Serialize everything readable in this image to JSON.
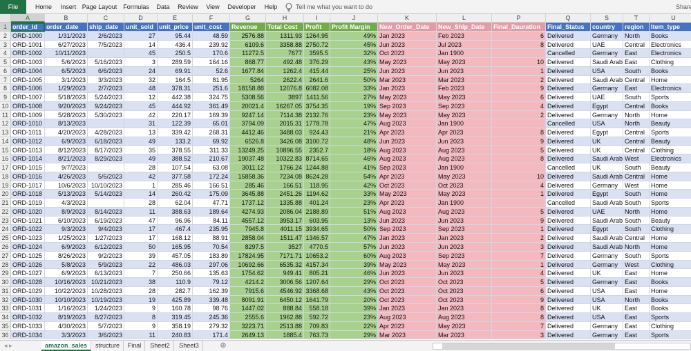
{
  "ribbon": {
    "tabs": [
      "File",
      "Home",
      "Insert",
      "Page Layout",
      "Formulas",
      "Data",
      "Review",
      "View",
      "Developer",
      "Help"
    ],
    "tell_me": "Tell me what you want to do",
    "share": "Share"
  },
  "column_letters": [
    "A",
    "B",
    "C",
    "D",
    "E",
    "F",
    "G",
    "H",
    "I",
    "J",
    "K",
    "L",
    "P",
    "Q",
    "S",
    "T",
    "U"
  ],
  "row_numbers": [
    1,
    2,
    3,
    4,
    5,
    6,
    7,
    8,
    9,
    10,
    11,
    12,
    13,
    14,
    15,
    16,
    17,
    18,
    19,
    20,
    21,
    22,
    23,
    24,
    25,
    26,
    27,
    28,
    29,
    30,
    31,
    32,
    33,
    34,
    35,
    36
  ],
  "table": {
    "headers": [
      "order_id",
      "order_date",
      "ship_date",
      "unit_sold",
      "unit_price",
      "unit_cost",
      "Revenue",
      "Total Cost",
      "Profit",
      "Profit Margin",
      "New_Order_Date",
      "New_Ship_Date",
      "Final_Dauration",
      "Final_Status",
      "country",
      "region",
      "Item_type"
    ],
    "rows": [
      [
        "ORD-1000",
        "1/31/2023",
        "2/6/2023",
        27,
        95.44,
        48.59,
        2576.88,
        1311.93,
        1264.95,
        "49%",
        "Jan 2023",
        "Feb 2023",
        6,
        "Delivered",
        "Germany",
        "North",
        "Books"
      ],
      [
        "ORD-1001",
        "6/27/2023",
        "7/5/2023",
        14,
        436.4,
        239.92,
        6109.6,
        3358.88,
        2750.72,
        "45%",
        "Jun 2023",
        "Jul 2023",
        8,
        "Delivered",
        "UAE",
        "Central",
        "Electronics"
      ],
      [
        "ORD-1002",
        "10/11/2023",
        null,
        45,
        250.5,
        170.6,
        11272.5,
        7677,
        3595.5,
        "32%",
        "Oct 2023",
        "Jan 1900",
        null,
        "Cancelled",
        "Germany",
        "East",
        "Electronics"
      ],
      [
        "ORD-1003",
        "5/6/2023",
        "5/16/2023",
        3,
        289.59,
        164.16,
        868.77,
        492.48,
        376.29,
        "43%",
        "May 2023",
        "May 2023",
        10,
        "Delivered",
        "Saudi Arabia",
        "East",
        "Clothing"
      ],
      [
        "ORD-1004",
        "6/5/2023",
        "6/6/2023",
        24,
        69.91,
        52.6,
        1677.84,
        1262.4,
        415.44,
        "25%",
        "Jun 2023",
        "Jun 2023",
        1,
        "Delivered",
        "USA",
        "South",
        "Books"
      ],
      [
        "ORD-1005",
        "3/1/2023",
        "3/3/2023",
        32,
        164.5,
        81.95,
        5264,
        2622.4,
        2641.6,
        "50%",
        "Mar 2023",
        "Mar 2023",
        2,
        "Delivered",
        "Saudi Arabia",
        "Central",
        "Home"
      ],
      [
        "ORD-1006",
        "1/29/2023",
        "2/7/2023",
        48,
        378.31,
        251.6,
        18158.88,
        12076.8,
        6082.08,
        "33%",
        "Jan 2023",
        "Feb 2023",
        9,
        "Delivered",
        "Germany",
        "East",
        "Electronics"
      ],
      [
        "ORD-1007",
        "5/18/2023",
        "5/24/2023",
        12,
        442.38,
        324.75,
        5308.56,
        3897,
        1411.56,
        "27%",
        "May 2023",
        "May 2023",
        6,
        "Delivered",
        "UAE",
        "South",
        "Sports"
      ],
      [
        "ORD-1008",
        "9/20/2023",
        "9/24/2023",
        45,
        444.92,
        361.49,
        20021.4,
        16267.05,
        3754.35,
        "19%",
        "Sep 2023",
        "Sep 2023",
        4,
        "Delivered",
        "Egypt",
        "Central",
        "Books"
      ],
      [
        "ORD-1009",
        "5/28/2023",
        "5/30/2023",
        42,
        220.17,
        169.39,
        9247.14,
        7114.38,
        2132.76,
        "23%",
        "May 2023",
        "May 2023",
        2,
        "Delivered",
        "Germany",
        "North",
        "Home"
      ],
      [
        "ORD-1010",
        "8/13/2023",
        null,
        31,
        122.39,
        65.01,
        3794.09,
        2015.31,
        1778.78,
        "47%",
        "Aug 2023",
        "Jan 1900",
        null,
        "Cancelled",
        "USA",
        "North",
        "Beauty"
      ],
      [
        "ORD-1011",
        "4/20/2023",
        "4/28/2023",
        13,
        339.42,
        268.31,
        4412.46,
        3488.03,
        924.43,
        "21%",
        "Apr 2023",
        "Apr 2023",
        8,
        "Delivered",
        "Egypt",
        "Central",
        "Sports"
      ],
      [
        "ORD-1012",
        "6/9/2023",
        "6/18/2023",
        49,
        133.2,
        69.92,
        6526.8,
        3426.08,
        3100.72,
        "48%",
        "Jun 2023",
        "Jun 2023",
        9,
        "Delivered",
        "UK",
        "Central",
        "Beauty"
      ],
      [
        "ORD-1013",
        "8/12/2023",
        "8/17/2023",
        35,
        378.55,
        311.33,
        13249.25,
        10896.55,
        2352.7,
        "18%",
        "Aug 2023",
        "Aug 2023",
        5,
        "Delivered",
        "UK",
        "Central",
        "Clothing"
      ],
      [
        "ORD-1014",
        "8/21/2023",
        "8/29/2023",
        49,
        388.52,
        210.67,
        19037.48,
        10322.83,
        8714.65,
        "46%",
        "Aug 2023",
        "Aug 2023",
        8,
        "Delivered",
        "Saudi Arabia",
        "West",
        "Electronics"
      ],
      [
        "ORD-1015",
        "9/7/2023",
        null,
        28,
        107.54,
        63.08,
        3011.12,
        1766.24,
        1244.88,
        "41%",
        "Sep 2023",
        "Jan 1900",
        null,
        "Cancelled",
        "UK",
        "South",
        "Beauty"
      ],
      [
        "ORD-1016",
        "4/26/2023",
        "5/6/2023",
        42,
        377.58,
        172.24,
        15858.36,
        7234.08,
        8624.28,
        "54%",
        "Apr 2023",
        "May 2023",
        10,
        "Delivered",
        "Saudi Arabia",
        "Central",
        "Home"
      ],
      [
        "ORD-1017",
        "10/6/2023",
        "10/10/2023",
        1,
        285.46,
        166.51,
        285.46,
        166.51,
        118.95,
        "42%",
        "Oct 2023",
        "Oct 2023",
        4,
        "Delivered",
        "Germany",
        "West",
        "Home"
      ],
      [
        "ORD-1018",
        "5/13/2023",
        "5/14/2023",
        14,
        260.42,
        175.09,
        3645.88,
        2451.26,
        1194.62,
        "33%",
        "May 2023",
        "May 2023",
        1,
        "Delivered",
        "Egypt",
        "South",
        "Home"
      ],
      [
        "ORD-1019",
        "4/3/2023",
        null,
        28,
        62.04,
        47.71,
        1737.12,
        1335.88,
        401.24,
        "23%",
        "Apr 2023",
        "Jan 1900",
        null,
        "Cancelled",
        "Saudi Arabia",
        "South",
        "Sports"
      ],
      [
        "ORD-1020",
        "8/9/2023",
        "8/14/2023",
        11,
        388.63,
        189.64,
        4274.93,
        2086.04,
        2188.89,
        "51%",
        "Aug 2023",
        "Aug 2023",
        5,
        "Delivered",
        "UAE",
        "North",
        "Home"
      ],
      [
        "ORD-1021",
        "6/10/2023",
        "6/19/2023",
        47,
        96.96,
        84.11,
        4557.12,
        3953.17,
        603.95,
        "13%",
        "Jun 2023",
        "Jun 2023",
        9,
        "Delivered",
        "Saudi Arabia",
        "South",
        "Beauty"
      ],
      [
        "ORD-1022",
        "9/3/2023",
        "9/4/2023",
        17,
        467.4,
        235.95,
        7945.8,
        4011.15,
        3934.65,
        "50%",
        "Sep 2023",
        "Sep 2023",
        1,
        "Delivered",
        "Egypt",
        "South",
        "Clothing"
      ],
      [
        "ORD-1023",
        "1/25/2023",
        "1/27/2023",
        17,
        168.12,
        88.91,
        2858.04,
        1511.47,
        1346.57,
        "47%",
        "Jan 2023",
        "Jan 2023",
        2,
        "Delivered",
        "Saudi Arabia",
        "Central",
        "Home"
      ],
      [
        "ORD-1024",
        "6/9/2023",
        "6/12/2023",
        50,
        165.95,
        70.54,
        8297.5,
        3527,
        4770.5,
        "57%",
        "Jun 2023",
        "Jun 2023",
        3,
        "Delivered",
        "Saudi Arabia",
        "North",
        "Home"
      ],
      [
        "ORD-1025",
        "8/26/2023",
        "9/2/2023",
        39,
        457.05,
        183.89,
        17824.95,
        7171.71,
        10653.2,
        "60%",
        "Aug 2023",
        "Sep 2023",
        7,
        "Delivered",
        "Germany",
        "South",
        "Sports"
      ],
      [
        "ORD-1026",
        "5/8/2023",
        "5/9/2023",
        22,
        486.03,
        297.06,
        10692.66,
        6535.32,
        4157.34,
        "39%",
        "May 2023",
        "May 2023",
        1,
        "Delivered",
        "Germany",
        "West",
        "Clothing"
      ],
      [
        "ORD-1027",
        "6/9/2023",
        "6/13/2023",
        7,
        250.66,
        135.63,
        1754.62,
        949.41,
        805.21,
        "46%",
        "Jun 2023",
        "Jun 2023",
        4,
        "Delivered",
        "UK",
        "East",
        "Home"
      ],
      [
        "ORD-1028",
        "10/16/2023",
        "10/21/2023",
        38,
        110.9,
        79.12,
        4214.2,
        3006.56,
        1207.64,
        "29%",
        "Oct 2023",
        "Oct 2023",
        5,
        "Delivered",
        "Germany",
        "East",
        "Books"
      ],
      [
        "ORD-1029",
        "10/22/2023",
        "10/28/2023",
        28,
        282.7,
        162.39,
        7915.6,
        4546.92,
        3368.68,
        "43%",
        "Oct 2023",
        "Oct 2023",
        6,
        "Delivered",
        "USA",
        "East",
        "Home"
      ],
      [
        "ORD-1030",
        "10/10/2023",
        "10/19/2023",
        19,
        425.89,
        339.48,
        8091.91,
        6450.12,
        1641.79,
        "20%",
        "Oct 2023",
        "Oct 2023",
        9,
        "Delivered",
        "USA",
        "North",
        "Books"
      ],
      [
        "ORD-1031",
        "1/16/2023",
        "1/24/2023",
        9,
        160.78,
        98.76,
        1447.02,
        888.84,
        558.18,
        "39%",
        "Jan 2023",
        "Jan 2023",
        8,
        "Delivered",
        "UK",
        "East",
        "Books"
      ],
      [
        "ORD-1032",
        "8/19/2023",
        "8/27/2023",
        8,
        319.45,
        245.36,
        2555.6,
        1962.88,
        592.72,
        "23%",
        "Aug 2023",
        "Aug 2023",
        8,
        "Delivered",
        "USA",
        "East",
        "Sports"
      ],
      [
        "ORD-1033",
        "4/30/2023",
        "5/7/2023",
        9,
        358.19,
        279.32,
        3223.71,
        2513.88,
        709.83,
        "22%",
        "Apr 2023",
        "May 2023",
        7,
        "Delivered",
        "Germany",
        "East",
        "Clothing"
      ],
      [
        "ORD-1034",
        "3/3/2023",
        "3/6/2023",
        11,
        240.83,
        171.4,
        2649.13,
        1885.4,
        763.73,
        "29%",
        "Mar 2023",
        "Mar 2023",
        3,
        "Delivered",
        "Germany",
        "East",
        "Sports"
      ]
    ]
  },
  "sheet_tabs": [
    "amazon_sales",
    "structure",
    "Final",
    "Sheet2",
    "Sheet3"
  ]
}
